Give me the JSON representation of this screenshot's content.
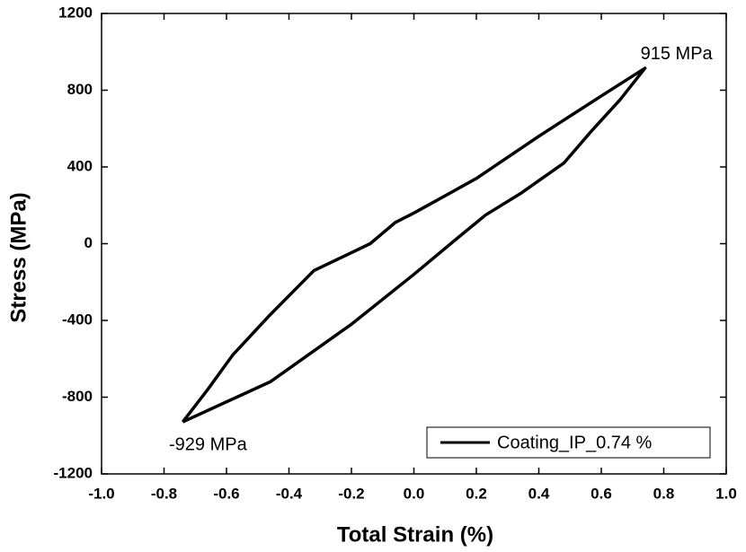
{
  "chart_data": {
    "type": "line",
    "xlabel": "Total Strain (%)",
    "ylabel": "Stress  (MPa)",
    "xlim": [
      -1.0,
      1.0
    ],
    "ylim": [
      -1200,
      1200
    ],
    "xticks": [
      {
        "value": -1.0,
        "label": "-1.0"
      },
      -0.8,
      -0.6,
      -0.4,
      -0.2,
      {
        "value": 0,
        "label": "0.0"
      },
      0.2,
      0.4,
      0.6,
      0.8,
      {
        "value": 1.0,
        "label": "1.0"
      }
    ],
    "yticks": [
      -1200,
      -800,
      -400,
      0,
      400,
      800,
      1200
    ],
    "annotations": [
      "915 MPa",
      "-929 MPa"
    ],
    "legend": "lower right",
    "series": [
      {
        "name": "Coating_IP_0.74 %",
        "color": "#000000",
        "x": [
          -0.74,
          -0.66,
          -0.58,
          -0.46,
          -0.32,
          -0.14,
          -0.06,
          0,
          0.2,
          0.4,
          0.6,
          0.74,
          0.66,
          0.57,
          0.48,
          0.34,
          0.23,
          0.14,
          0,
          -0.2,
          -0.46,
          -0.74
        ],
        "values": [
          -929,
          -760,
          -580,
          -370,
          -140,
          0,
          110,
          160,
          340,
          560,
          770,
          915,
          750,
          590,
          420,
          260,
          150,
          30,
          -160,
          -420,
          -720,
          -929
        ]
      }
    ]
  }
}
